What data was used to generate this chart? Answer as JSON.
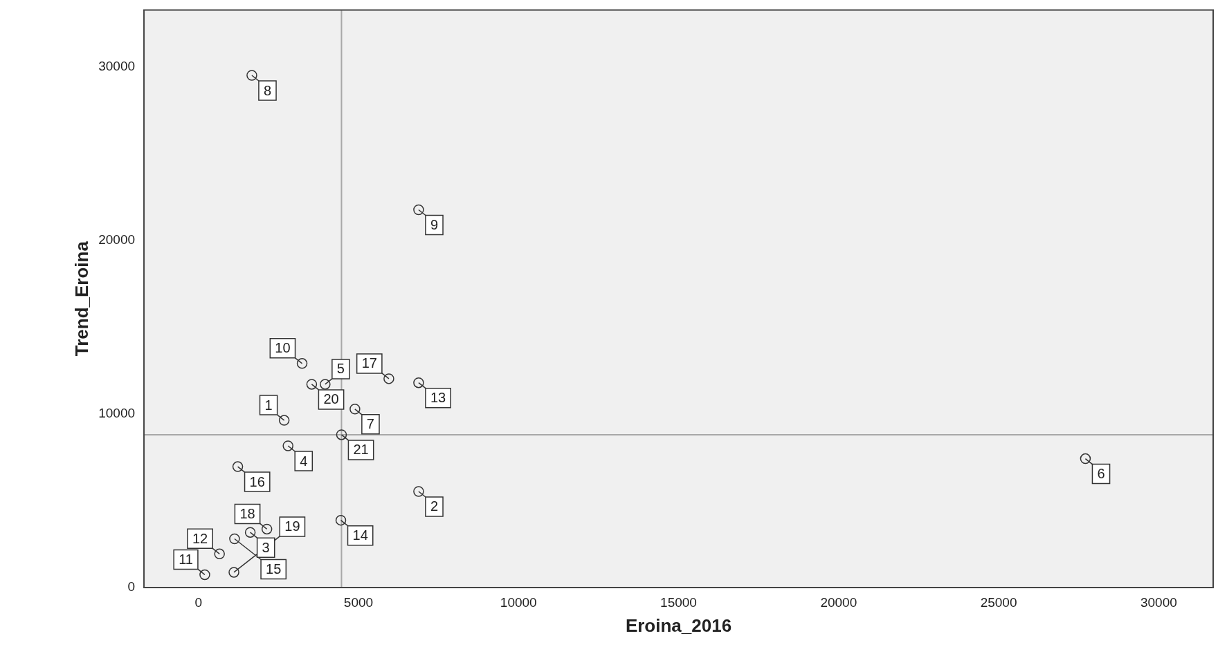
{
  "chart_data": {
    "type": "scatter",
    "xlabel": "Eroina_2016",
    "ylabel": "Trend_Eroina",
    "x": [
      2680,
      6880,
      1620,
      2800,
      3960,
      27710,
      4890,
      1670,
      6880,
      3240,
      200,
      660,
      6880,
      4450,
      1130,
      1230,
      5950,
      2140,
      1110,
      3540,
      4470
    ],
    "series": [
      {
        "color": "#333333",
        "values": [
          9640,
          5540,
          3180,
          8170,
          11720,
          7430,
          10290,
          29530,
          21780,
          12920,
          740,
          1940,
          11810,
          3880,
          2810,
          6970,
          12040,
          3370,
          880,
          11720,
          8810
        ]
      }
    ],
    "xlim": [
      -1700,
      31700
    ],
    "xticks": [
      0,
      5000,
      10000,
      15000,
      20000,
      25000,
      30000
    ],
    "ylim": [
      0,
      33300
    ],
    "yticks": [
      0,
      10000,
      20000,
      30000
    ],
    "ref_lines": [
      {
        "axis": "x",
        "value": 4470,
        "color": "#a8a8a8"
      },
      {
        "axis": "y",
        "value": 8810,
        "color": "#a8a8a8"
      }
    ],
    "annotations": [
      {
        "text": "1",
        "x": 2680,
        "y": 9640
      },
      {
        "text": "2",
        "x": 6880,
        "y": 5540
      },
      {
        "text": "3",
        "x": 1620,
        "y": 3180
      },
      {
        "text": "4",
        "x": 2800,
        "y": 8170
      },
      {
        "text": "5",
        "x": 3960,
        "y": 11720
      },
      {
        "text": "6",
        "x": 27710,
        "y": 7430
      },
      {
        "text": "7",
        "x": 4890,
        "y": 10290
      },
      {
        "text": "8",
        "x": 1670,
        "y": 29530
      },
      {
        "text": "9",
        "x": 6880,
        "y": 21780
      },
      {
        "text": "10",
        "x": 3240,
        "y": 12920
      },
      {
        "text": "11",
        "x": 200,
        "y": 740
      },
      {
        "text": "12",
        "x": 660,
        "y": 1940
      },
      {
        "text": "13",
        "x": 6880,
        "y": 11810
      },
      {
        "text": "14",
        "x": 4450,
        "y": 3880
      },
      {
        "text": "15",
        "x": 1130,
        "y": 2810
      },
      {
        "text": "16",
        "x": 1230,
        "y": 6970
      },
      {
        "text": "17",
        "x": 5950,
        "y": 12040
      },
      {
        "text": "18",
        "x": 2140,
        "y": 3370
      },
      {
        "text": "19",
        "x": 1110,
        "y": 880
      },
      {
        "text": "20",
        "x": 3540,
        "y": 11720
      },
      {
        "text": "21",
        "x": 4470,
        "y": 8810
      }
    ],
    "grid": false,
    "legend": false,
    "marker": "circle"
  }
}
